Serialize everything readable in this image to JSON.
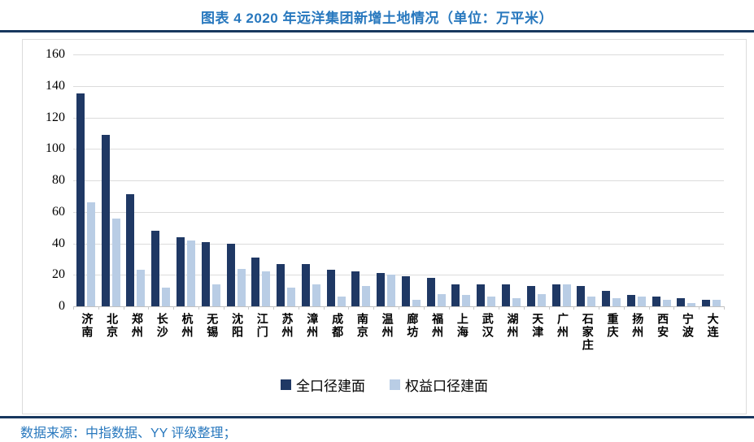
{
  "header": {
    "title": "图表 4 2020 年远洋集团新增土地情况（单位：万平米）"
  },
  "footer": {
    "source": "数据来源：中指数据、YY 评级整理；"
  },
  "colors": {
    "accent_blue": "#2878BE",
    "rule_navy": "#17375E",
    "bar_dark": "#1F3864",
    "bar_light": "#B9CDE5",
    "gridline": "#DCDCDC"
  },
  "chart_data": {
    "type": "bar",
    "title": "图表 4 2020 年远洋集团新增土地情况（单位：万平米）",
    "categories": [
      "济南",
      "北京",
      "郑州",
      "长沙",
      "杭州",
      "无锡",
      "沈阳",
      "江门",
      "苏州",
      "漳州",
      "成都",
      "南京",
      "温州",
      "廊坊",
      "福州",
      "上海",
      "武汉",
      "湖州",
      "天津",
      "广州",
      "石家庄",
      "重庆",
      "扬州",
      "西安",
      "宁波",
      "大连"
    ],
    "series": [
      {
        "name": "全口径建面",
        "color": "#1F3864",
        "values": [
          135,
          109,
          71,
          48,
          44,
          41,
          40,
          31,
          27,
          27,
          23,
          22,
          21,
          19,
          18,
          14,
          14,
          14,
          13,
          14,
          13,
          10,
          7,
          6,
          5,
          4
        ]
      },
      {
        "name": "权益口径建面",
        "color": "#B9CDE5",
        "values": [
          66,
          56,
          23,
          12,
          42,
          14,
          24,
          22,
          12,
          14,
          6,
          13,
          20,
          4,
          8,
          7,
          6,
          5,
          8,
          14,
          6,
          5,
          6,
          4,
          2,
          4
        ]
      }
    ],
    "xlabel": "",
    "ylabel": "",
    "ylim": [
      0,
      160
    ],
    "ytick_step": 20,
    "grid": true,
    "legend_position": "bottom"
  }
}
